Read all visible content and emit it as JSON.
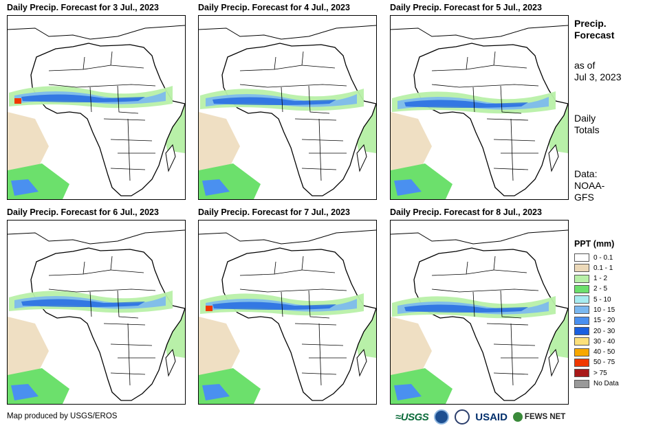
{
  "panels": [
    {
      "title": "Daily Precip. Forecast for 3 Jul., 2023"
    },
    {
      "title": "Daily Precip. Forecast for 4 Jul., 2023"
    },
    {
      "title": "Daily Precip. Forecast for 5 Jul., 2023"
    },
    {
      "title": "Daily Precip. Forecast for 6 Jul., 2023"
    },
    {
      "title": "Daily Precip. Forecast for 7 Jul., 2023"
    },
    {
      "title": "Daily Precip. Forecast for 8 Jul., 2023"
    }
  ],
  "side": {
    "title_line1": "Precip.",
    "title_line2": "Forecast",
    "asof_line1": "as of",
    "asof_line2": "Jul 3, 2023",
    "totals_line1": "Daily",
    "totals_line2": "Totals",
    "data_line1": "Data:",
    "data_line2": "NOAA-",
    "data_line3": "GFS"
  },
  "legend": {
    "title": "PPT (mm)",
    "items": [
      {
        "label": "0 - 0.1",
        "color": "#ffffff"
      },
      {
        "label": "0.1 - 1",
        "color": "#ecd9b9"
      },
      {
        "label": "1 - 2",
        "color": "#b8f0a8"
      },
      {
        "label": "2 - 5",
        "color": "#6ce06c"
      },
      {
        "label": "5 - 10",
        "color": "#a8ecf0"
      },
      {
        "label": "10 - 15",
        "color": "#7ab8f0"
      },
      {
        "label": "15 - 20",
        "color": "#4a90f0"
      },
      {
        "label": "20 - 30",
        "color": "#1a60e0"
      },
      {
        "label": "30 - 40",
        "color": "#fce07a"
      },
      {
        "label": "40 - 50",
        "color": "#f8a800"
      },
      {
        "label": "50 - 75",
        "color": "#f03800"
      },
      {
        "label": "> 75",
        "color": "#a81818"
      },
      {
        "label": "No Data",
        "color": "#999999"
      }
    ]
  },
  "footer": {
    "credit": "Map produced by USGS/EROS",
    "logo_usgs": "≈USGS",
    "logo_usaid": "USAID",
    "logo_fews": "FEWS NET"
  }
}
